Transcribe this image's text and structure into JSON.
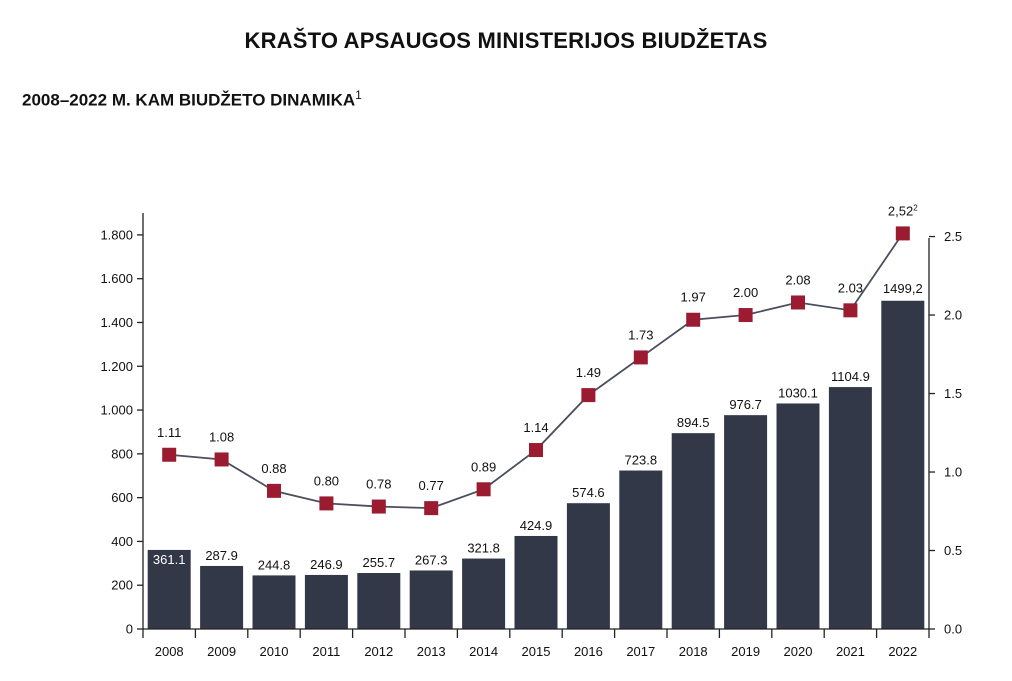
{
  "header": {
    "title": "KRAŠTO APSAUGOS MINISTERIJOS BIUDŽETAS",
    "subtitle": "2008–2022 M. KAM BIUDŽETO DINAMIKA",
    "subtitle_footnote": "1"
  },
  "chart_data": {
    "type": "bar",
    "categories": [
      "2008",
      "2009",
      "2010",
      "2011",
      "2012",
      "2013",
      "2014",
      "2015",
      "2016",
      "2017",
      "2018",
      "2019",
      "2020",
      "2021",
      "2022"
    ],
    "series": [
      {
        "type": "bar",
        "axis": "left",
        "values": [
          361.1,
          287.9,
          244.8,
          246.9,
          255.7,
          267.3,
          321.8,
          424.9,
          574.6,
          723.8,
          894.5,
          976.7,
          1030.1,
          1104.9,
          1499.2
        ],
        "labels": [
          "361.1",
          "287.9",
          "244.8",
          "246.9",
          "255.7",
          "267.3",
          "321.8",
          "424.9",
          "574.6",
          "723.8",
          "894.5",
          "976.7",
          "1030.1",
          "1104.9",
          "1499,2"
        ],
        "color": "#323848"
      },
      {
        "type": "line",
        "axis": "right",
        "values": [
          1.11,
          1.08,
          0.88,
          0.8,
          0.78,
          0.77,
          0.89,
          1.14,
          1.49,
          1.73,
          1.97,
          2.0,
          2.08,
          2.03,
          2.52
        ],
        "labels": [
          "1.11",
          "1.08",
          "0.88",
          "0.80",
          "0.78",
          "0.77",
          "0.89",
          "1.14",
          "1.49",
          "1.73",
          "1.97",
          "2.00",
          "2.08",
          "2.03",
          "2,52"
        ],
        "label_footnotes": [
          "",
          "",
          "",
          "",
          "",
          "",
          "",
          "",
          "",
          "",
          "",
          "",
          "",
          "",
          "2"
        ],
        "marker_color": "#9b1b30",
        "line_color": "#4a4f5c"
      }
    ],
    "left_axis": {
      "ylim": [
        0,
        1900
      ],
      "ticks": [
        0,
        200,
        400,
        600,
        800,
        1000,
        1200,
        1400,
        1600,
        1800
      ],
      "tick_labels": [
        "0",
        "200",
        "400",
        "600",
        "800",
        "1.000",
        "1.200",
        "1.400",
        "1.600",
        "1.800"
      ]
    },
    "right_axis": {
      "ylim": [
        0,
        2.65
      ],
      "ticks": [
        0,
        0.5,
        1.0,
        1.5,
        2.0,
        2.5
      ],
      "tick_labels": [
        "0.0",
        "0.5",
        "1.0",
        "1.5",
        "2.0",
        "2.5"
      ]
    },
    "grid": false
  }
}
